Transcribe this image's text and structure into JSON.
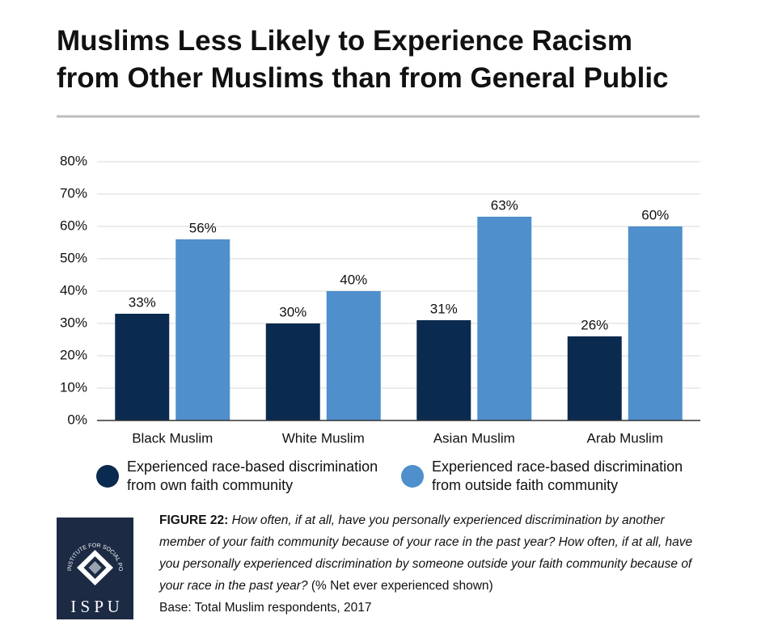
{
  "chart_data": {
    "type": "bar",
    "title": [
      "Muslims Less Likely to Experience Racism",
      "from Other Muslims than from General Public"
    ],
    "categories": [
      "Black Muslim",
      "White Muslim",
      "Asian Muslim",
      "Arab Muslim"
    ],
    "series": [
      {
        "name": "Experienced race-based discrimination from own faith community",
        "color": "#0b2a4f",
        "values": [
          33,
          30,
          31,
          26
        ],
        "value_labels": [
          "33%",
          "30%",
          "31%",
          "26%"
        ]
      },
      {
        "name": "Experienced race-based discrimination from outside faith community",
        "color": "#4f8fcc",
        "values": [
          56,
          40,
          63,
          60
        ],
        "value_labels": [
          "56%",
          "40%",
          "63%",
          "60%"
        ]
      }
    ],
    "ylim": [
      0,
      80
    ],
    "yticks": [
      {
        "value": 0,
        "label": "0%"
      },
      {
        "value": 10,
        "label": "10%"
      },
      {
        "value": 20,
        "label": "20%"
      },
      {
        "value": 30,
        "label": "30%"
      },
      {
        "value": 40,
        "label": "40%"
      },
      {
        "value": 50,
        "label": "50%"
      },
      {
        "value": 60,
        "label": "60%"
      },
      {
        "value": 70,
        "label": "70%"
      },
      {
        "value": 80,
        "label": "80%"
      }
    ],
    "grid": true
  },
  "caption": {
    "figure_label": "FIGURE 22:",
    "question": "How often, if at all, have you personally experienced discrimination by another member of your faith community because of your race in the past year? How often, if at all, have you personally experienced discrimination by someone outside your faith community because of your race in the past year?",
    "suffix": "(% Net ever experienced shown)",
    "base": "Base: Total Muslim respondents, 2017"
  },
  "logo": {
    "name": "I S P U",
    "tagline": "INSTITUTE FOR SOCIAL POLICY AND UNDERSTANDING"
  }
}
